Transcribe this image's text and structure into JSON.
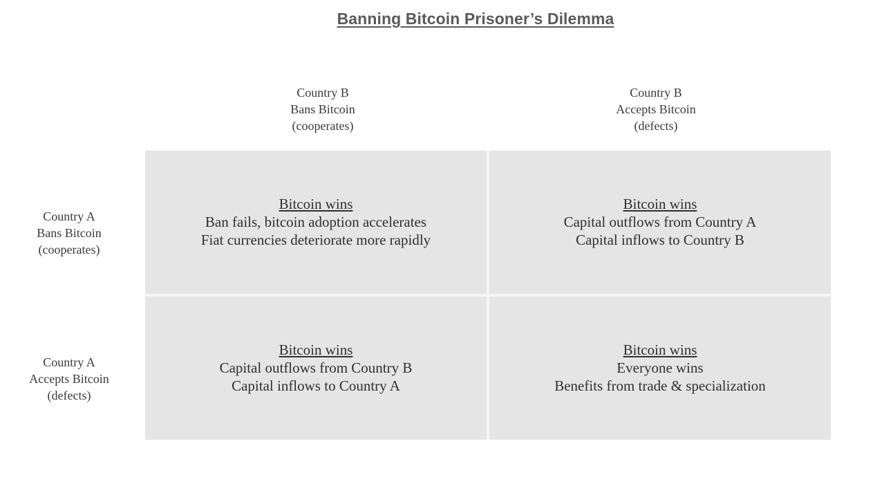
{
  "title": "Banning Bitcoin Prisoner’s Dilemma",
  "columns": [
    {
      "line1": "Country  B",
      "line2": "Bans Bitcoin",
      "line3": "(cooperates)"
    },
    {
      "line1": "Country  B",
      "line2": "Accepts Bitcoin",
      "line3": "(defects)"
    }
  ],
  "rows": [
    {
      "line1": "Country  A",
      "line2": "Bans Bitcoin",
      "line3": "(cooperates)"
    },
    {
      "line1": "Country  A",
      "line2": "Accepts Bitcoin",
      "line3": "(defects)"
    }
  ],
  "cells": [
    {
      "heading": "Bitcoin wins",
      "line1": "Ban fails, bitcoin adoption accelerates",
      "line2": "Fiat currencies deteriorate more rapidly"
    },
    {
      "heading": "Bitcoin wins",
      "line1": "Capital outflows from Country A",
      "line2": "Capital inflows to Country B"
    },
    {
      "heading": "Bitcoin wins",
      "line1": "Capital outflows from Country B",
      "line2": "Capital inflows to Country A"
    },
    {
      "heading": "Bitcoin wins",
      "line1": "Everyone wins",
      "line2": "Benefits from trade & specialization"
    }
  ],
  "colors": {
    "cell_background": "#e5e5e5",
    "title_text": "#5a5a5a",
    "body_text": "#2f2f2f"
  }
}
